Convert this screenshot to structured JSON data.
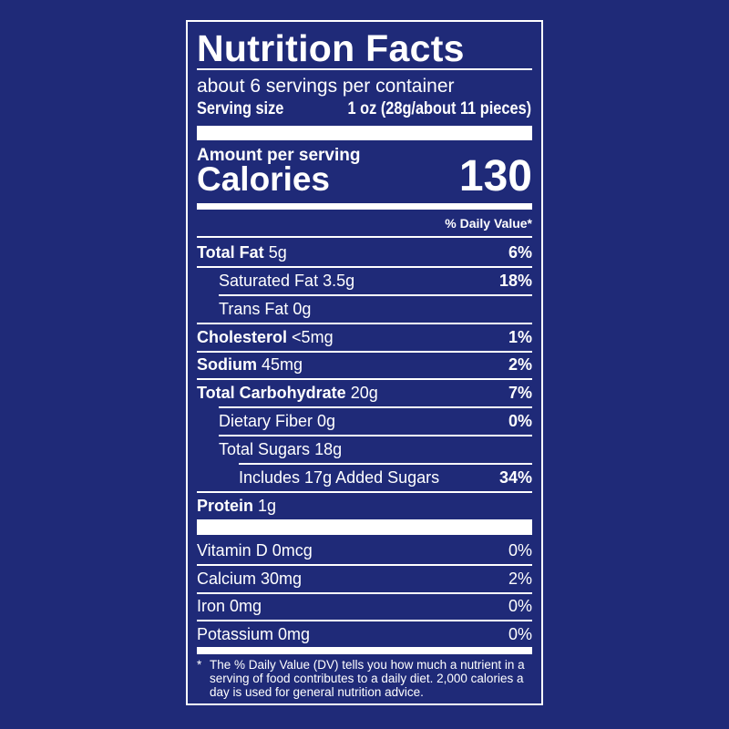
{
  "title": "Nutrition Facts",
  "servings_per_container": "about 6 servings per container",
  "serving_size": {
    "label": "Serving size",
    "value": "1 oz (28g/about 11 pieces)"
  },
  "amount_per_serving": "Amount per serving",
  "calories": {
    "label": "Calories",
    "value": "130"
  },
  "daily_value_header": "% Daily Value*",
  "nutrients": [
    {
      "name": "Total Fat",
      "amount": "5g",
      "dv": "6%"
    },
    {
      "name": "Saturated Fat",
      "amount": "3.5g",
      "dv": "18%"
    },
    {
      "name": "Trans Fat",
      "amount": "0g",
      "dv": ""
    },
    {
      "name": "Cholesterol",
      "amount": "<5mg",
      "dv": "1%"
    },
    {
      "name": "Sodium",
      "amount": "45mg",
      "dv": "2%"
    },
    {
      "name": "Total Carbohydrate",
      "amount": "20g",
      "dv": "7%"
    },
    {
      "name": "Dietary Fiber",
      "amount": "0g",
      "dv": "0%"
    },
    {
      "name": "Total Sugars",
      "amount": "18g",
      "dv": ""
    },
    {
      "name": "Includes 17g Added Sugars",
      "amount": "",
      "dv": "34%"
    },
    {
      "name": "Protein",
      "amount": "1g",
      "dv": ""
    }
  ],
  "vitamins": [
    {
      "label": "Vitamin D 0mcg",
      "dv": "0%"
    },
    {
      "label": "Calcium 30mg",
      "dv": "2%"
    },
    {
      "label": "Iron 0mg",
      "dv": "0%"
    },
    {
      "label": "Potassium 0mg",
      "dv": "0%"
    }
  ],
  "footnote": {
    "mark": "*",
    "text": "The % Daily Value (DV) tells you how much a nutrient in a serving of food contributes to a daily diet. 2,000 calories a day is used for general nutrition advice."
  },
  "colors": {
    "background": "#1f2a78",
    "foreground": "#ffffff"
  }
}
